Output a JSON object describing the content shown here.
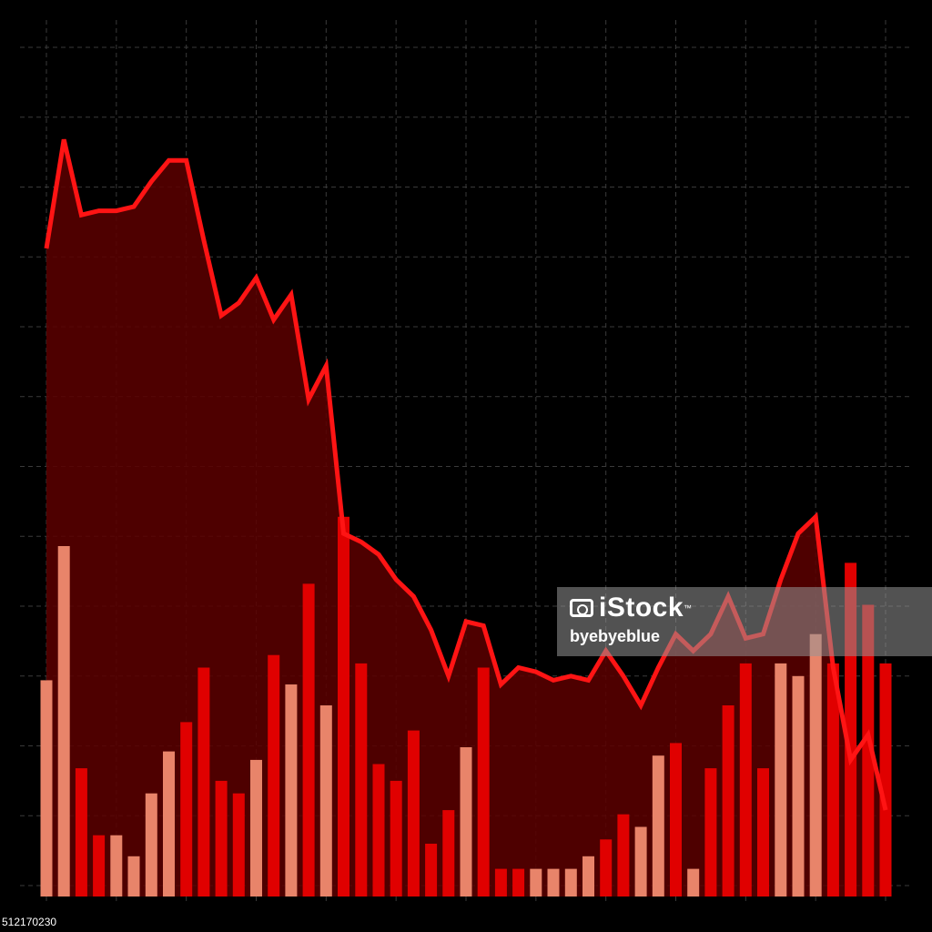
{
  "chart_data": {
    "type": "bar+area",
    "title": "",
    "xlabel": "",
    "ylabel": "",
    "grid": true,
    "colors": {
      "background": "#000000",
      "grid": "#3a3a3a",
      "line": "#ff1414",
      "area_fill": "#5c0000",
      "bar_red": "#e00000",
      "bar_salmon": "#e8846a"
    },
    "line": {
      "ylim": [
        0,
        100
      ],
      "values": [
        76,
        89,
        80,
        80.5,
        80.5,
        81,
        84,
        86.5,
        86.5,
        77,
        68,
        69.5,
        72.5,
        67.5,
        70.5,
        58,
        62,
        42,
        41,
        39.5,
        36.5,
        34.5,
        30.5,
        25,
        31.5,
        31,
        24,
        26,
        25.5,
        24.5,
        25,
        24.5,
        28,
        25,
        21.5,
        26,
        30,
        28,
        30,
        34.5,
        29.5,
        30,
        36.5,
        42,
        44,
        26,
        15,
        18,
        9
      ]
    },
    "bars": {
      "ylim": [
        0,
        100
      ],
      "values": [
        24.5,
        40.5,
        14,
        6,
        6,
        3.5,
        11,
        16,
        19.5,
        26,
        12.5,
        11,
        15,
        27.5,
        24,
        36,
        21.5,
        44,
        26.5,
        14.5,
        12.5,
        18.5,
        5,
        9,
        16.5,
        26,
        2,
        2,
        2,
        2,
        2,
        3.5,
        5.5,
        8.5,
        7,
        15.5,
        17,
        2,
        14,
        21.5,
        26.5,
        14,
        26.5,
        25,
        30,
        26.5,
        38.5,
        33.5,
        26.5
      ],
      "colors": [
        "salmon",
        "salmon",
        "red",
        "red",
        "salmon",
        "salmon",
        "salmon",
        "salmon",
        "red",
        "red",
        "red",
        "red",
        "salmon",
        "red",
        "salmon",
        "red",
        "salmon",
        "red",
        "red",
        "red",
        "red",
        "red",
        "red",
        "red",
        "salmon",
        "red",
        "red",
        "red",
        "salmon",
        "salmon",
        "salmon",
        "salmon",
        "red",
        "red",
        "salmon",
        "salmon",
        "red",
        "salmon",
        "red",
        "red",
        "red",
        "red",
        "salmon",
        "salmon",
        "salmon",
        "red",
        "red",
        "red",
        "red"
      ]
    }
  },
  "watermark": {
    "brand": "iStock",
    "tm": "™",
    "credit": "byebyeblue",
    "icon": "camera-icon"
  },
  "image_id": "512170230"
}
